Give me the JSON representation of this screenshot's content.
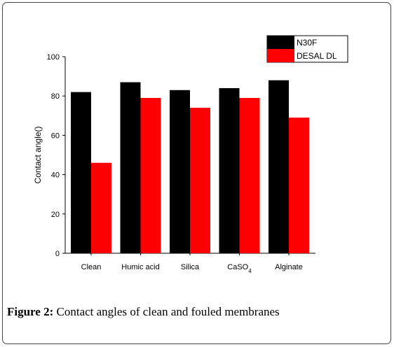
{
  "caption": {
    "label": "Figure 2:",
    "text": " Contact angles of clean and fouled membranes"
  },
  "chart_data": {
    "type": "bar",
    "title": "",
    "xlabel": "",
    "ylabel": "Contact angle()",
    "ylim": [
      0,
      100
    ],
    "yticks": [
      0,
      20,
      40,
      60,
      80,
      100
    ],
    "categories": [
      "Clean",
      "Humic acid",
      "Silica",
      "CaSO4",
      "Alginate"
    ],
    "category_labels": [
      {
        "main": "Clean",
        "sub": ""
      },
      {
        "main": "Humic acid",
        "sub": ""
      },
      {
        "main": "Silica",
        "sub": ""
      },
      {
        "main": "CaSO",
        "sub": "4"
      },
      {
        "main": "Alginate",
        "sub": ""
      }
    ],
    "series": [
      {
        "name": "N30F",
        "color": "#000000",
        "values": [
          82,
          87,
          83,
          84,
          88
        ]
      },
      {
        "name": "DESAL DL",
        "color": "#ff0000",
        "values": [
          46,
          79,
          74,
          79,
          69
        ]
      }
    ],
    "legend": "top-right",
    "grid": false
  }
}
